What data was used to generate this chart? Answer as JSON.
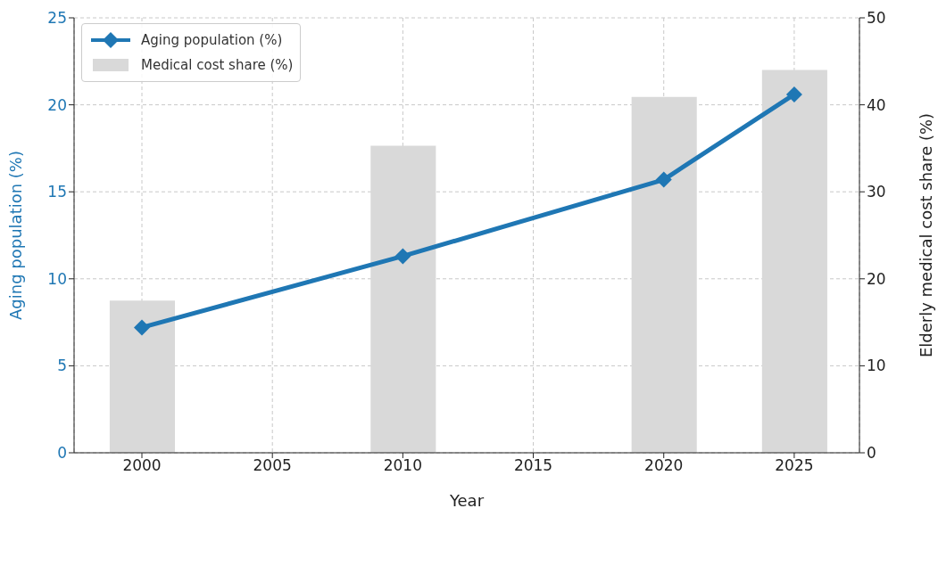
{
  "chart_data": {
    "type": "line",
    "xlabel": "Year",
    "ylabel": "Aging population (%)",
    "y2label": "Elderly medical cost share (%)",
    "x": [
      2000,
      2010,
      2020,
      2025
    ],
    "series": [
      {
        "name": "Aging population (%)",
        "color": "#1f77b4",
        "values": [
          7.2,
          11.3,
          15.7,
          20.6
        ]
      },
      {
        "name": "Medical cost share (%)",
        "type": "bar",
        "axis": "y2",
        "color": "#d9d9d9",
        "values": [
          17.5,
          35.3,
          40.9,
          44.0
        ]
      }
    ],
    "xlim": [
      1997.4,
      2027.5
    ],
    "xticks": [
      2000,
      2005,
      2010,
      2015,
      2020,
      2025
    ],
    "ylim": [
      0,
      25
    ],
    "yticks": [
      0,
      5,
      10,
      15,
      20,
      25
    ],
    "y2lim": [
      0,
      50
    ],
    "y2ticks": [
      0,
      10,
      20,
      30,
      40,
      50
    ],
    "grid": true,
    "legend": "top left",
    "marker": "diamond",
    "line_style": "solid"
  }
}
